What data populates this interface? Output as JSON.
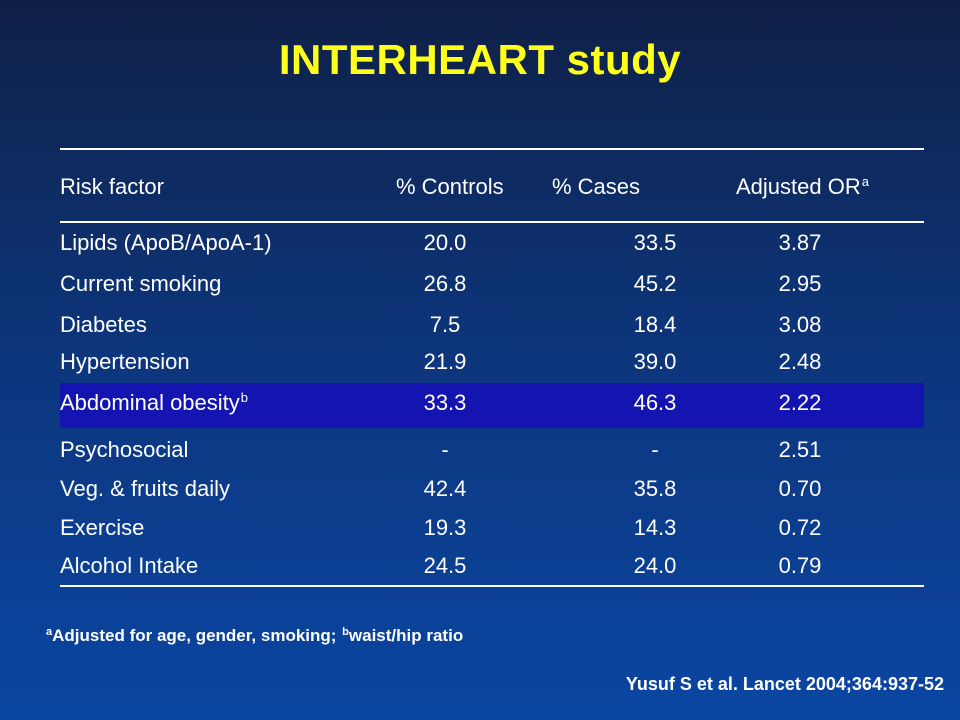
{
  "title": "INTERHEART study",
  "table": {
    "headers": {
      "risk_factor": "Risk factor",
      "controls": "% Controls",
      "cases": "% Cases",
      "or": "Adjusted OR",
      "or_sup": "a"
    },
    "rows": [
      {
        "factor": "Lipids (ApoB/ApoA-1)",
        "sup": "",
        "controls": "20.0",
        "cases": "33.5",
        "or": "3.87"
      },
      {
        "factor": "Current smoking",
        "sup": "",
        "controls": "26.8",
        "cases": "45.2",
        "or": "2.95"
      },
      {
        "factor": "Diabetes",
        "sup": "",
        "controls": "7.5",
        "cases": "18.4",
        "or": "3.08"
      },
      {
        "factor": "Hypertension",
        "sup": "",
        "controls": "21.9",
        "cases": "39.0",
        "or": "2.48"
      },
      {
        "factor": "Abdominal obesity",
        "sup": "b",
        "controls": "33.3",
        "cases": "46.3",
        "or": "2.22"
      },
      {
        "factor": "Psychosocial",
        "sup": "",
        "controls": "-",
        "cases": "-",
        "or": "2.51"
      },
      {
        "factor": "Veg. & fruits daily",
        "sup": "",
        "controls": "42.4",
        "cases": "35.8",
        "or": "0.70"
      },
      {
        "factor": "Exercise",
        "sup": "",
        "controls": "19.3",
        "cases": "14.3",
        "or": "0.72"
      },
      {
        "factor": "Alcohol Intake",
        "sup": "",
        "controls": "24.5",
        "cases": "24.0",
        "or": "0.79"
      }
    ]
  },
  "footnote": {
    "sup_a": "a",
    "text_a": "Adjusted for age, gender, smoking; ",
    "sup_b": "b",
    "text_b": "waist/hip ratio"
  },
  "citation": "Yusuf S et al. Lancet 2004;364:937-52",
  "colors": {
    "title": "#ffff1e",
    "highlight_row": "#1414b0",
    "background_top": "#0f2046",
    "background_bottom": "#0a46a3"
  }
}
